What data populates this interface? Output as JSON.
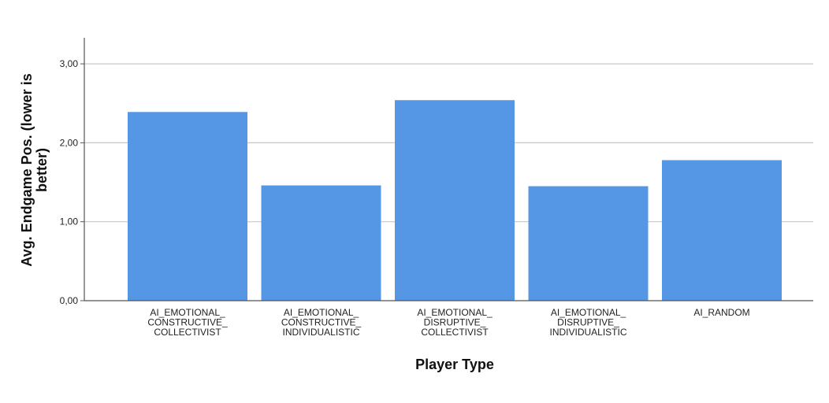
{
  "chart_data": {
    "type": "bar",
    "title": "",
    "xlabel": "Player Type",
    "ylabel_lines": [
      "Avg. Endgame Pos. (lower is",
      "better)"
    ],
    "categories": [
      [
        "AI_EMOTIONAL_",
        "CONSTRUCTIVE_",
        "COLLECTIVIST"
      ],
      [
        "AI_EMOTIONAL_",
        "CONSTRUCTIVE_",
        "INDIVIDUALISTIC"
      ],
      [
        "AI_EMOTIONAL_",
        "DISRUPTIVE_",
        "COLLECTIVIST"
      ],
      [
        "AI_EMOTIONAL_",
        "DISRUPTIVE_",
        "INDIVIDUALISTIC"
      ],
      [
        "AI_RANDOM"
      ]
    ],
    "values": [
      2.39,
      1.46,
      2.54,
      1.45,
      1.78
    ],
    "ylim": [
      0,
      3.3
    ],
    "yticks": [
      0,
      1,
      2,
      3
    ],
    "ytick_labels": [
      "0,00",
      "1,00",
      "2,00",
      "3,00"
    ],
    "grid": true,
    "bar_color": "#5597e4",
    "grid_color": "#c8c8c8",
    "axis_color": "#555555"
  }
}
